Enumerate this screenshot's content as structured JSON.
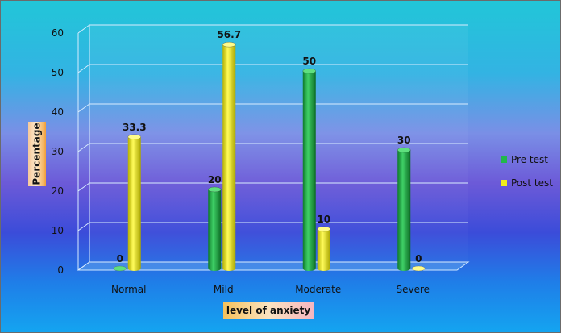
{
  "chart_data": {
    "type": "bar",
    "title": "",
    "xlabel": "level of anxiety",
    "ylabel": "Percentage",
    "categories": [
      "Normal",
      "Mild",
      "Moderate",
      "Severe"
    ],
    "series": [
      {
        "name": "Pre test",
        "values": [
          0,
          20,
          50,
          30
        ],
        "color": "#22b84a"
      },
      {
        "name": "Post test",
        "values": [
          33.3,
          56.7,
          10,
          0
        ],
        "color": "#f2ee1c"
      }
    ],
    "data_labels": [
      [
        "0",
        "20",
        "50",
        "30"
      ],
      [
        "33.3",
        "56.7",
        "10",
        "0"
      ]
    ],
    "yticks": [
      "0",
      "10",
      "20",
      "30",
      "40",
      "50",
      "60"
    ],
    "ylim": [
      0,
      60
    ],
    "grid": true,
    "legend_position": "right",
    "style": "3d-cylinder"
  }
}
